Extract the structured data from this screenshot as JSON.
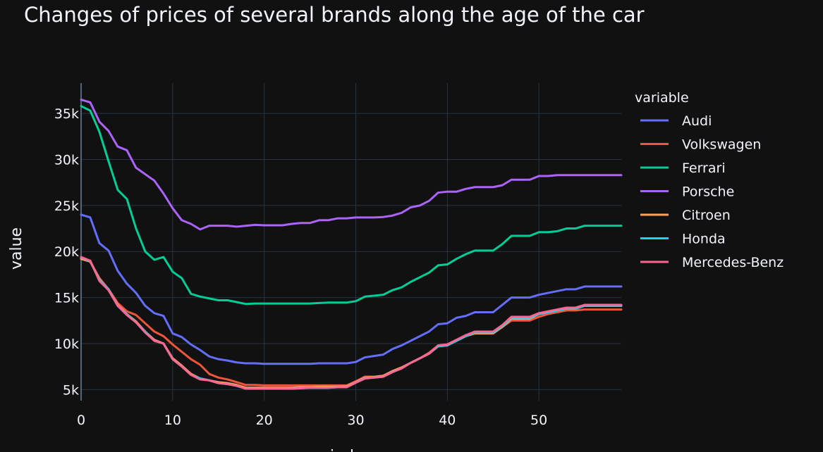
{
  "chart_data": {
    "type": "line",
    "title": "Changes of prices of several brands along the age of the car",
    "xlabel": "index",
    "ylabel": "value",
    "xlim": [
      0,
      59
    ],
    "ylim": [
      3800,
      38300
    ],
    "x_ticks": [
      0,
      10,
      20,
      30,
      40,
      50
    ],
    "y_ticks": [
      5000,
      10000,
      15000,
      20000,
      25000,
      30000,
      35000
    ],
    "y_tick_labels": [
      "5k",
      "10k",
      "15k",
      "20k",
      "25k",
      "30k",
      "35k"
    ],
    "legend_title": "variable",
    "legend_position": "right",
    "grid": true,
    "background_color": "#111111",
    "grid_color": "#283442",
    "x": [
      0,
      1,
      2,
      3,
      4,
      5,
      6,
      7,
      8,
      9,
      10,
      11,
      12,
      13,
      14,
      15,
      16,
      17,
      18,
      19,
      20,
      21,
      22,
      23,
      24,
      25,
      26,
      27,
      28,
      29,
      30,
      31,
      32,
      33,
      34,
      35,
      36,
      37,
      38,
      39,
      40,
      41,
      42,
      43,
      44,
      45,
      46,
      47,
      48,
      49,
      50,
      51,
      52,
      53,
      54,
      55,
      56,
      57,
      58,
      59
    ],
    "series": [
      {
        "name": "Audi",
        "color": "#636efa",
        "values": [
          24000,
          23700,
          20900,
          20100,
          17900,
          16500,
          15500,
          14100,
          13300,
          13000,
          11100,
          10700,
          9900,
          9300,
          8600,
          8300,
          8150,
          7950,
          7850,
          7850,
          7800,
          7800,
          7800,
          7800,
          7800,
          7800,
          7850,
          7850,
          7850,
          7850,
          8000,
          8500,
          8650,
          8800,
          9400,
          9800,
          10300,
          10800,
          11300,
          12100,
          12200,
          12800,
          13000,
          13400,
          13400,
          13400,
          14200,
          15000,
          15000,
          15000,
          15300,
          15500,
          15700,
          15900,
          15900,
          16200,
          16200,
          16200,
          16200,
          16200
        ]
      },
      {
        "name": "Volkswagen",
        "color": "#EF553B",
        "values": [
          19300,
          18900,
          17100,
          15900,
          14400,
          13500,
          13100,
          12200,
          11300,
          10800,
          9900,
          9100,
          8300,
          7700,
          6700,
          6300,
          6100,
          5800,
          5500,
          5500,
          5450,
          5450,
          5450,
          5450,
          5450,
          5450,
          5450,
          5450,
          5450,
          5450,
          5900,
          6400,
          6400,
          6500,
          7000,
          7300,
          7900,
          8400,
          9000,
          9800,
          9900,
          10400,
          10900,
          11200,
          11200,
          11200,
          11800,
          12500,
          12500,
          12500,
          12900,
          13200,
          13400,
          13600,
          13600,
          13700,
          13700,
          13700,
          13700,
          13700
        ]
      },
      {
        "name": "Ferrari",
        "color": "#00cc96",
        "values": [
          35800,
          35300,
          33000,
          29800,
          26700,
          25700,
          22500,
          20000,
          19100,
          19400,
          17800,
          17100,
          15400,
          15100,
          14900,
          14700,
          14700,
          14500,
          14300,
          14350,
          14350,
          14350,
          14350,
          14350,
          14350,
          14350,
          14400,
          14450,
          14450,
          14450,
          14600,
          15100,
          15200,
          15300,
          15800,
          16100,
          16700,
          17200,
          17700,
          18500,
          18600,
          19200,
          19700,
          20100,
          20100,
          20100,
          20800,
          21700,
          21700,
          21700,
          22100,
          22100,
          22200,
          22500,
          22500,
          22800,
          22800,
          22800,
          22800,
          22800
        ]
      },
      {
        "name": "Porsche",
        "color": "#ab63fa",
        "values": [
          36500,
          36200,
          34100,
          33100,
          31400,
          31000,
          29100,
          28400,
          27700,
          26300,
          24700,
          23400,
          23000,
          22400,
          22800,
          22800,
          22800,
          22700,
          22800,
          22900,
          22850,
          22850,
          22850,
          23000,
          23100,
          23100,
          23400,
          23400,
          23600,
          23600,
          23700,
          23700,
          23700,
          23750,
          23900,
          24200,
          24800,
          25000,
          25500,
          26400,
          26500,
          26500,
          26800,
          27000,
          27000,
          27000,
          27200,
          27800,
          27800,
          27800,
          28200,
          28200,
          28300,
          28300,
          28300,
          28300,
          28300,
          28300,
          28300,
          28300
        ]
      },
      {
        "name": "Citroen",
        "color": "#FFA15A",
        "values": [
          19200,
          18900,
          17000,
          15800,
          14200,
          13200,
          12400,
          11300,
          10400,
          10000,
          8400,
          7600,
          6700,
          6200,
          6000,
          5800,
          5700,
          5500,
          5200,
          5200,
          5200,
          5200,
          5200,
          5200,
          5250,
          5250,
          5300,
          5300,
          5300,
          5350,
          5800,
          6300,
          6350,
          6500,
          7000,
          7400,
          7900,
          8400,
          8900,
          9700,
          9800,
          10300,
          10800,
          11100,
          11100,
          11100,
          11800,
          12700,
          12700,
          12700,
          13200,
          13400,
          13600,
          13800,
          13800,
          14100,
          14100,
          14100,
          14100,
          14100
        ]
      },
      {
        "name": "Honda",
        "color": "#19d3f3",
        "values": [
          19350,
          18950,
          16900,
          15900,
          14100,
          13200,
          12300,
          11300,
          10300,
          10000,
          8300,
          7500,
          6600,
          6200,
          6000,
          5700,
          5600,
          5400,
          5100,
          5100,
          5100,
          5100,
          5100,
          5100,
          5150,
          5200,
          5200,
          5200,
          5250,
          5250,
          5750,
          6250,
          6300,
          6400,
          6900,
          7300,
          7900,
          8400,
          8900,
          9700,
          9800,
          10300,
          10800,
          11200,
          11200,
          11200,
          11900,
          12800,
          12800,
          12800,
          13200,
          13400,
          13600,
          13800,
          13800,
          14100,
          14100,
          14100,
          14100,
          14100
        ]
      },
      {
        "name": "Mercedes-Benz",
        "color": "#FF6692",
        "values": [
          19400,
          19000,
          16800,
          15800,
          14100,
          13100,
          12300,
          11200,
          10300,
          10000,
          8300,
          7500,
          6600,
          6100,
          6000,
          5700,
          5600,
          5400,
          5100,
          5100,
          5100,
          5100,
          5100,
          5100,
          5150,
          5200,
          5200,
          5200,
          5250,
          5250,
          5750,
          6200,
          6300,
          6400,
          6900,
          7300,
          7900,
          8400,
          8900,
          9800,
          9900,
          10400,
          10900,
          11300,
          11300,
          11300,
          12000,
          12900,
          12900,
          12900,
          13300,
          13500,
          13700,
          13900,
          13900,
          14200,
          14200,
          14200,
          14200,
          14200
        ]
      }
    ]
  }
}
